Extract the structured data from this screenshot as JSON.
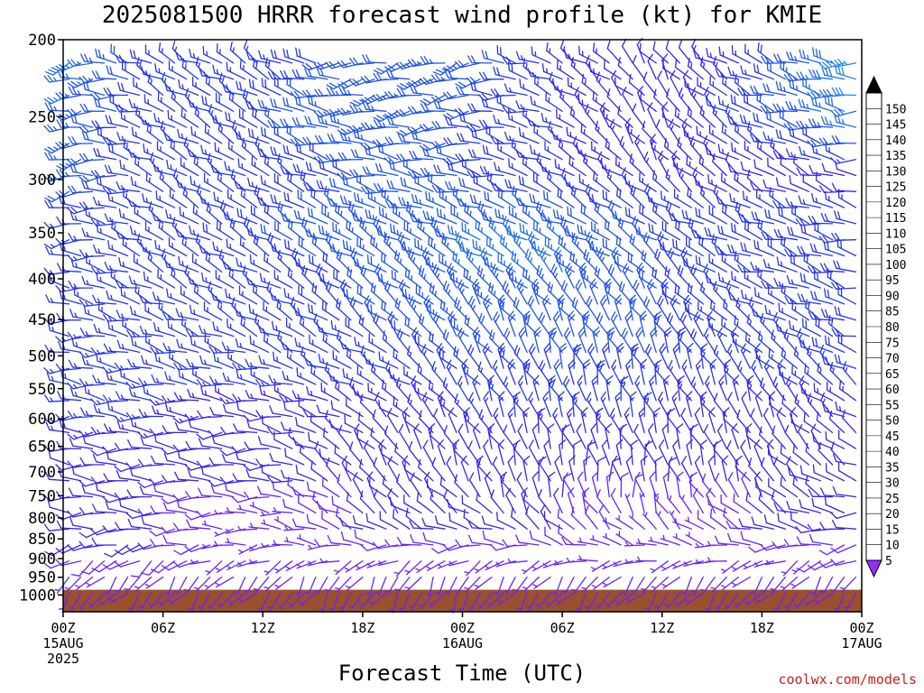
{
  "title": "2025081500 HRRR forecast wind profile (kt) for KMIE",
  "xlabel": "Forecast Time (UTC)",
  "credit": "coolwx.com/models",
  "chart_data": {
    "type": "wind_barbs",
    "title": "2025081500 HRRR forecast wind profile (kt) for KMIE",
    "xlabel": "Forecast Time (UTC)",
    "ylabel": "",
    "y_ticks": [
      200,
      250,
      300,
      350,
      400,
      450,
      500,
      550,
      600,
      650,
      700,
      750,
      800,
      850,
      900,
      950,
      1000
    ],
    "y_scale": "log",
    "ylim": [
      200,
      1050
    ],
    "xlim_hours": [
      0,
      48
    ],
    "x_ticks": [
      {
        "hour": 0,
        "label": "00Z",
        "date": "15AUG",
        "year": "2025"
      },
      {
        "hour": 6,
        "label": "06Z",
        "date": "",
        "year": ""
      },
      {
        "hour": 12,
        "label": "12Z",
        "date": "",
        "year": ""
      },
      {
        "hour": 18,
        "label": "18Z",
        "date": "",
        "year": ""
      },
      {
        "hour": 24,
        "label": "00Z",
        "date": "16AUG",
        "year": ""
      },
      {
        "hour": 30,
        "label": "06Z",
        "date": "",
        "year": ""
      },
      {
        "hour": 36,
        "label": "12Z",
        "date": "",
        "year": ""
      },
      {
        "hour": 42,
        "label": "18Z",
        "date": "",
        "year": ""
      },
      {
        "hour": 48,
        "label": "00Z",
        "date": "17AUG",
        "year": ""
      }
    ],
    "surface_pressure": 985,
    "ground_color": "#9b4f2c",
    "colorbar": {
      "levels": [
        5,
        10,
        15,
        20,
        25,
        30,
        35,
        40,
        45,
        50,
        55,
        60,
        65,
        70,
        75,
        80,
        85,
        90,
        95,
        100,
        105,
        110,
        115,
        120,
        125,
        130,
        135,
        140,
        145,
        150
      ],
      "colors": [
        "#9a2bff",
        "#6a22ff",
        "#3a23f0",
        "#2637e8",
        "#1f55e8",
        "#1e6ee8",
        "#1f8ae6",
        "#20a8e8",
        "#1ec4d0",
        "#18d8a8",
        "#17d870",
        "#20d83a",
        "#6fe02a",
        "#b8ec22",
        "#ecf61a",
        "#ffe81c",
        "#ffd41c",
        "#ffc01a",
        "#ffa81a",
        "#ff9418",
        "#ff7c18",
        "#ff6418",
        "#ff4a18",
        "#ff2e1e",
        "#ff1e3c",
        "#ff1e62",
        "#ff1e8a",
        "#ff1eb4",
        "#f41ed8",
        "#e01ef0"
      ]
    },
    "wind_field": {
      "x_hours": [
        0,
        6,
        12,
        18,
        24,
        30,
        36,
        42,
        48
      ],
      "levels_hpa": [
        200,
        250,
        300,
        350,
        400,
        450,
        500,
        550,
        600,
        650,
        700,
        750,
        800,
        850,
        900,
        950
      ],
      "speed_kt": [
        [
          30,
          18,
          15,
          20,
          25,
          15,
          10,
          15,
          35
        ],
        [
          25,
          15,
          20,
          25,
          20,
          15,
          10,
          20,
          30
        ],
        [
          25,
          15,
          15,
          20,
          20,
          15,
          15,
          10,
          10
        ],
        [
          15,
          15,
          20,
          25,
          25,
          25,
          20,
          20,
          20
        ],
        [
          15,
          15,
          15,
          20,
          25,
          25,
          20,
          15,
          20
        ],
        [
          15,
          15,
          15,
          20,
          25,
          20,
          20,
          15,
          20
        ],
        [
          15,
          15,
          15,
          15,
          20,
          20,
          20,
          15,
          20
        ],
        [
          15,
          15,
          15,
          15,
          15,
          20,
          15,
          15,
          15
        ],
        [
          15,
          15,
          10,
          10,
          15,
          15,
          15,
          10,
          15
        ],
        [
          10,
          10,
          10,
          10,
          10,
          10,
          10,
          10,
          10
        ],
        [
          10,
          10,
          10,
          10,
          10,
          10,
          10,
          10,
          10
        ],
        [
          10,
          10,
          10,
          10,
          10,
          10,
          10,
          10,
          10
        ],
        [
          10,
          10,
          5,
          10,
          10,
          10,
          5,
          10,
          10
        ],
        [
          10,
          10,
          5,
          10,
          10,
          10,
          5,
          10,
          10
        ],
        [
          10,
          10,
          5,
          5,
          5,
          5,
          5,
          5,
          10
        ],
        [
          5,
          5,
          5,
          5,
          5,
          5,
          5,
          5,
          5
        ]
      ],
      "direction_deg": [
        [
          250,
          300,
          300,
          250,
          250,
          300,
          320,
          290,
          270
        ],
        [
          250,
          300,
          300,
          260,
          260,
          300,
          330,
          290,
          270
        ],
        [
          250,
          300,
          300,
          280,
          280,
          300,
          320,
          300,
          280
        ],
        [
          260,
          300,
          300,
          300,
          300,
          300,
          300,
          290,
          280
        ],
        [
          270,
          300,
          300,
          310,
          310,
          320,
          320,
          290,
          280
        ],
        [
          270,
          290,
          300,
          310,
          320,
          330,
          330,
          300,
          290
        ],
        [
          270,
          280,
          290,
          300,
          320,
          340,
          340,
          320,
          290
        ],
        [
          270,
          280,
          280,
          300,
          320,
          340,
          340,
          330,
          300
        ],
        [
          270,
          270,
          270,
          300,
          330,
          340,
          340,
          330,
          300
        ],
        [
          270,
          270,
          270,
          320,
          330,
          340,
          340,
          330,
          300
        ],
        [
          270,
          270,
          270,
          320,
          330,
          350,
          350,
          330,
          290
        ],
        [
          270,
          270,
          270,
          320,
          320,
          350,
          350,
          320,
          280
        ],
        [
          270,
          270,
          270,
          310,
          300,
          330,
          330,
          300,
          270
        ],
        [
          260,
          260,
          270,
          290,
          270,
          300,
          300,
          280,
          260
        ],
        [
          240,
          240,
          250,
          250,
          240,
          260,
          260,
          250,
          240
        ],
        [
          220,
          220,
          220,
          210,
          210,
          220,
          220,
          220,
          220
        ]
      ]
    }
  }
}
